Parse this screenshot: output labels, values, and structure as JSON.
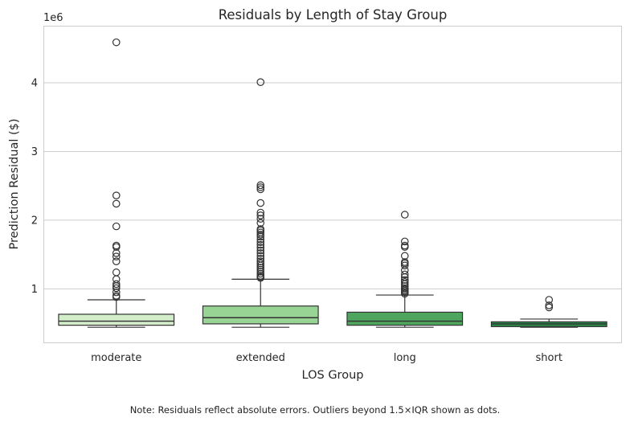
{
  "chart_data": {
    "type": "box",
    "title": "Residuals by Length of Stay Group",
    "xlabel": "LOS Group",
    "ylabel": "Prediction Residual ($)",
    "y_offset_label": "1e6",
    "ylim": [
      0.22,
      4.82
    ],
    "y_ticks": [
      1,
      2,
      3,
      4
    ],
    "y_tick_labels": [
      "1",
      "2",
      "3",
      "4"
    ],
    "grid": "horizontal",
    "categories": [
      "moderate",
      "extended",
      "long",
      "short"
    ],
    "colors": [
      "#d3ecc9",
      "#98d594",
      "#4ea55e",
      "#2a8a47"
    ],
    "boxes": [
      {
        "category": "moderate",
        "whisker_low": 0.44,
        "q1": 0.47,
        "median": 0.53,
        "q3": 0.63,
        "whisker_high": 0.84,
        "outliers": [
          4.59,
          2.36,
          2.24,
          1.91,
          1.63,
          1.61,
          1.52,
          1.47,
          1.4,
          1.24,
          1.14,
          1.07,
          1.04,
          1.01,
          0.95,
          0.9,
          0.88
        ]
      },
      {
        "category": "extended",
        "whisker_low": 0.44,
        "q1": 0.49,
        "median": 0.58,
        "q3": 0.75,
        "whisker_high": 1.14,
        "outliers": [
          4.01,
          2.51,
          2.48,
          2.45,
          2.25,
          2.11,
          2.07,
          2.02,
          1.96,
          1.87,
          1.85,
          1.82,
          1.79,
          1.76,
          1.72,
          1.68,
          1.64,
          1.6,
          1.56,
          1.52,
          1.48,
          1.44,
          1.4,
          1.37,
          1.34,
          1.31,
          1.28,
          1.25,
          1.22,
          1.19,
          1.17,
          1.16
        ]
      },
      {
        "category": "long",
        "whisker_low": 0.44,
        "q1": 0.47,
        "median": 0.53,
        "q3": 0.66,
        "whisker_high": 0.91,
        "outliers": [
          2.08,
          1.69,
          1.63,
          1.61,
          1.48,
          1.39,
          1.37,
          1.34,
          1.27,
          1.21,
          1.17,
          1.13,
          1.1,
          1.07,
          1.04,
          1.01,
          0.99,
          0.97,
          0.95,
          0.93
        ]
      },
      {
        "category": "short",
        "whisker_low": 0.44,
        "q1": 0.45,
        "median": 0.49,
        "q3": 0.52,
        "whisker_high": 0.56,
        "outliers": [
          0.84,
          0.76,
          0.73
        ]
      }
    ]
  },
  "note": "Note: Residuals reflect absolute errors. Outliers beyond 1.5×IQR shown as dots."
}
